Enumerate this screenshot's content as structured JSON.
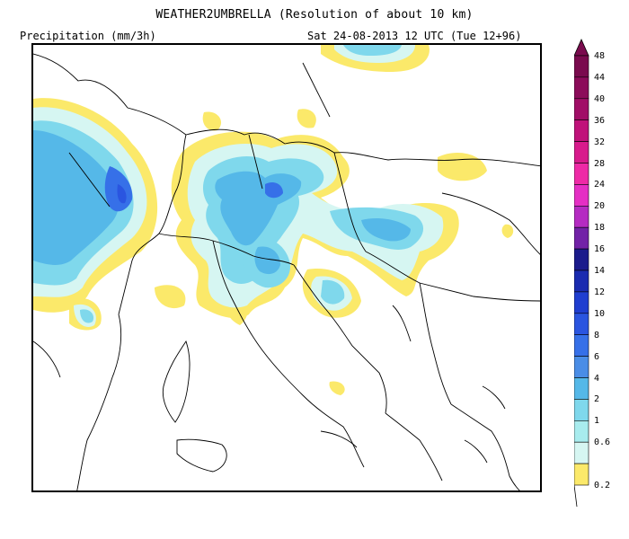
{
  "header": {
    "title": "WEATHER2UMBRELLA (Resolution of about 10 km)",
    "left_label": "Precipitation (mm/3h)",
    "right_label": "Sat 24-08-2013 12 UTC (Tue 12+96)"
  },
  "legend": {
    "levels": [
      {
        "label": "48",
        "color": "#7a0b4e"
      },
      {
        "label": "44",
        "color": "#8c0c5a"
      },
      {
        "label": "40",
        "color": "#a10e67"
      },
      {
        "label": "36",
        "color": "#c0127a"
      },
      {
        "label": "32",
        "color": "#d81b8c"
      },
      {
        "label": "28",
        "color": "#ee2aa6"
      },
      {
        "label": "24",
        "color": "#e52fc4"
      },
      {
        "label": "20",
        "color": "#b52bc2"
      },
      {
        "label": "18",
        "color": "#7222a7"
      },
      {
        "label": "16",
        "color": "#1b1b8c"
      },
      {
        "label": "14",
        "color": "#1a2bb0"
      },
      {
        "label": "12",
        "color": "#1f3ed0"
      },
      {
        "label": "10",
        "color": "#2a55e0"
      },
      {
        "label": "8",
        "color": "#3670e8"
      },
      {
        "label": "6",
        "color": "#4a8de6"
      },
      {
        "label": "4",
        "color": "#55b8e8"
      },
      {
        "label": "2",
        "color": "#7fd8ec"
      },
      {
        "label": "1",
        "color": "#a8ecee"
      },
      {
        "label": "0.6",
        "color": "#d6f6f2"
      },
      {
        "label": "0.2",
        "color": "#fbe96a"
      }
    ]
  }
}
